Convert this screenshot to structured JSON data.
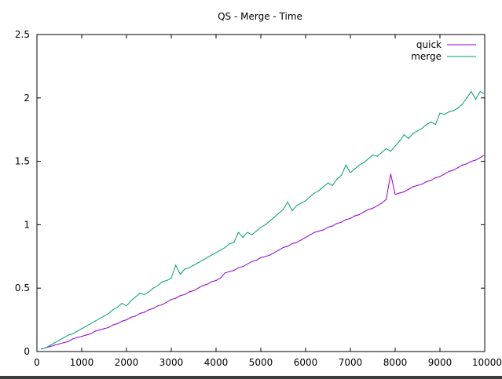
{
  "chart_data": {
    "type": "line",
    "title": "QS - Merge - Time",
    "xlabel": "",
    "ylabel": "",
    "xlim": [
      0,
      10000
    ],
    "ylim": [
      0,
      2.5
    ],
    "xticks": [
      0,
      1000,
      2000,
      3000,
      4000,
      5000,
      6000,
      7000,
      8000,
      9000,
      10000
    ],
    "yticks": [
      0,
      0.5,
      1,
      1.5,
      2,
      2.5
    ],
    "xtick_labels": [
      "0",
      "1000",
      "2000",
      "3000",
      "4000",
      "5000",
      "6000",
      "7000",
      "8000",
      "9000",
      "10000"
    ],
    "ytick_labels": [
      "0",
      "0.5",
      "1",
      "1.5",
      "2",
      "2.5"
    ],
    "grid": false,
    "legend_position": "top-right",
    "series": [
      {
        "name": "quick",
        "color": "#9400d3",
        "x": [
          100,
          200,
          300,
          400,
          500,
          600,
          700,
          800,
          900,
          1000,
          1100,
          1200,
          1300,
          1400,
          1500,
          1600,
          1700,
          1800,
          1900,
          2000,
          2100,
          2200,
          2300,
          2400,
          2500,
          2600,
          2700,
          2800,
          2900,
          3000,
          3100,
          3200,
          3300,
          3400,
          3500,
          3600,
          3700,
          3800,
          3900,
          4000,
          4100,
          4200,
          4300,
          4400,
          4500,
          4600,
          4700,
          4800,
          4900,
          5000,
          5100,
          5200,
          5300,
          5400,
          5500,
          5600,
          5700,
          5800,
          5900,
          6000,
          6100,
          6200,
          6300,
          6400,
          6500,
          6600,
          6700,
          6800,
          6900,
          7000,
          7100,
          7200,
          7300,
          7400,
          7500,
          7600,
          7700,
          7800,
          7900,
          8000,
          8100,
          8200,
          8300,
          8400,
          8500,
          8600,
          8700,
          8800,
          8900,
          9000,
          9100,
          9200,
          9300,
          9400,
          9500,
          9600,
          9700,
          9800,
          9900,
          10000
        ],
        "y": [
          0.02,
          0.03,
          0.04,
          0.05,
          0.06,
          0.07,
          0.08,
          0.1,
          0.11,
          0.12,
          0.13,
          0.14,
          0.16,
          0.17,
          0.18,
          0.19,
          0.21,
          0.22,
          0.24,
          0.25,
          0.27,
          0.28,
          0.3,
          0.31,
          0.33,
          0.34,
          0.36,
          0.37,
          0.39,
          0.41,
          0.42,
          0.44,
          0.45,
          0.47,
          0.48,
          0.5,
          0.52,
          0.53,
          0.55,
          0.56,
          0.58,
          0.62,
          0.63,
          0.64,
          0.66,
          0.67,
          0.69,
          0.71,
          0.72,
          0.74,
          0.75,
          0.76,
          0.78,
          0.8,
          0.82,
          0.83,
          0.85,
          0.86,
          0.88,
          0.9,
          0.92,
          0.94,
          0.95,
          0.96,
          0.98,
          0.99,
          1.01,
          1.02,
          1.04,
          1.05,
          1.07,
          1.08,
          1.1,
          1.12,
          1.13,
          1.15,
          1.17,
          1.2,
          1.4,
          1.24,
          1.25,
          1.26,
          1.28,
          1.3,
          1.31,
          1.32,
          1.34,
          1.35,
          1.37,
          1.38,
          1.4,
          1.42,
          1.43,
          1.45,
          1.47,
          1.48,
          1.5,
          1.51,
          1.53,
          1.55
        ]
      },
      {
        "name": "merge",
        "color": "#009e73",
        "x": [
          100,
          200,
          300,
          400,
          500,
          600,
          700,
          800,
          900,
          1000,
          1100,
          1200,
          1300,
          1400,
          1500,
          1600,
          1700,
          1800,
          1900,
          2000,
          2100,
          2200,
          2300,
          2400,
          2500,
          2600,
          2700,
          2800,
          2900,
          3000,
          3100,
          3200,
          3300,
          3400,
          3500,
          3600,
          3700,
          3800,
          3900,
          4000,
          4100,
          4200,
          4300,
          4400,
          4500,
          4600,
          4700,
          4800,
          4900,
          5000,
          5100,
          5200,
          5300,
          5400,
          5500,
          5600,
          5700,
          5800,
          5900,
          6000,
          6100,
          6200,
          6300,
          6400,
          6500,
          6600,
          6700,
          6800,
          6900,
          7000,
          7100,
          7200,
          7300,
          7400,
          7500,
          7600,
          7700,
          7800,
          7900,
          8000,
          8100,
          8200,
          8300,
          8400,
          8500,
          8600,
          8700,
          8800,
          8900,
          9000,
          9100,
          9200,
          9300,
          9400,
          9500,
          9600,
          9700,
          9800,
          9900,
          10000
        ],
        "y": [
          0.02,
          0.03,
          0.05,
          0.07,
          0.09,
          0.11,
          0.13,
          0.14,
          0.16,
          0.18,
          0.2,
          0.22,
          0.24,
          0.26,
          0.28,
          0.3,
          0.33,
          0.35,
          0.38,
          0.36,
          0.4,
          0.43,
          0.46,
          0.45,
          0.47,
          0.5,
          0.52,
          0.55,
          0.56,
          0.58,
          0.68,
          0.61,
          0.65,
          0.66,
          0.68,
          0.7,
          0.72,
          0.74,
          0.76,
          0.78,
          0.8,
          0.82,
          0.85,
          0.86,
          0.94,
          0.9,
          0.94,
          0.92,
          0.95,
          0.98,
          1.0,
          1.03,
          1.06,
          1.09,
          1.12,
          1.18,
          1.11,
          1.15,
          1.17,
          1.19,
          1.22,
          1.25,
          1.27,
          1.3,
          1.33,
          1.31,
          1.36,
          1.39,
          1.47,
          1.41,
          1.44,
          1.47,
          1.49,
          1.52,
          1.55,
          1.54,
          1.57,
          1.6,
          1.58,
          1.62,
          1.66,
          1.71,
          1.68,
          1.72,
          1.74,
          1.76,
          1.79,
          1.81,
          1.79,
          1.88,
          1.87,
          1.89,
          1.9,
          1.92,
          1.95,
          2.0,
          2.05,
          1.99,
          2.05,
          2.03
        ]
      }
    ]
  }
}
